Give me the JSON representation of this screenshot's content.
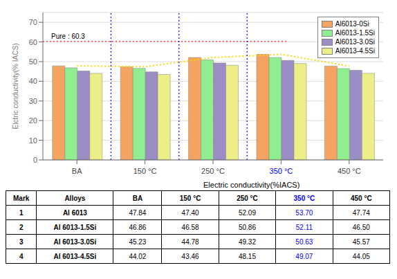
{
  "chart_data": {
    "type": "bar",
    "categories": [
      "BA",
      "150 °C",
      "250 °C",
      "350 °C",
      "450 °C"
    ],
    "series": [
      {
        "name": "Al6013-0Si",
        "color": "#F4A460",
        "values": [
          47.84,
          47.4,
          52.09,
          53.7,
          47.74
        ]
      },
      {
        "name": "Al6013-1.5Si",
        "color": "#90EE90",
        "values": [
          46.86,
          46.58,
          50.86,
          52.11,
          46.5
        ]
      },
      {
        "name": "Al6013-3.0Si",
        "color": "#9B8EC4",
        "values": [
          45.23,
          44.78,
          49.32,
          50.63,
          45.57
        ]
      },
      {
        "name": "Al6013-4.5Si",
        "color": "#EEEE88",
        "values": [
          44.02,
          43.46,
          48.15,
          49.07,
          44.05
        ]
      }
    ],
    "ylabel": "Elctric conductivity(% IACS)",
    "ylim": [
      0,
      75
    ],
    "yticks": [
      0,
      10,
      20,
      30,
      40,
      50,
      60,
      70
    ],
    "grid": true,
    "legend": "upper right",
    "reference_line": {
      "y": 60.3,
      "label": "Pure : 60.3",
      "color": "#FF4444"
    },
    "envelope": {
      "series": "Al6013-0Si",
      "color": "#FFD700"
    },
    "dividers": {
      "before": [
        "150 °C",
        "250 °C",
        "350 °C"
      ],
      "color": "#0000FF"
    },
    "highlight": {
      "category": "350 °C",
      "color": "#0000FF"
    },
    "table": {
      "header": "Electric conductivity(%IACS)",
      "columns": [
        "Mark",
        "Alloys",
        "BA",
        "150 °C",
        "250 °C",
        "350 °C",
        "450 °C"
      ],
      "rows": [
        {
          "mark": "1",
          "alloy": "Al 6013",
          "values": [
            47.84,
            47.4,
            52.09,
            53.7,
            47.74
          ]
        },
        {
          "mark": "2",
          "alloy": "Al 6013-1.5Si",
          "values": [
            46.86,
            46.58,
            50.86,
            52.11,
            46.5
          ]
        },
        {
          "mark": "3",
          "alloy": "Al 6013-3.0Si",
          "values": [
            45.23,
            44.78,
            49.32,
            50.63,
            45.57
          ]
        },
        {
          "mark": "4",
          "alloy": "Al 6013-4.5Si",
          "values": [
            44.02,
            43.46,
            48.15,
            49.07,
            44.05
          ]
        }
      ]
    }
  }
}
